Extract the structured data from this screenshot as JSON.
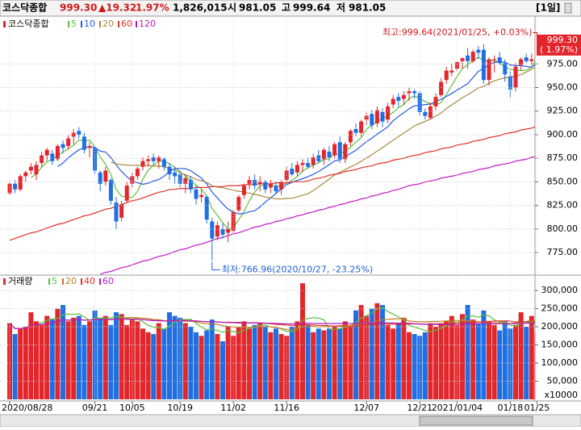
{
  "header": {
    "name": "코스닥종합",
    "price": "999.30",
    "change": "▲19.32",
    "percent": "1.97%",
    "volume": "1,826,015",
    "open_label": "시",
    "open": "981.05",
    "high_label": "고",
    "high": "999.64",
    "low_label": "저",
    "low": "981.05",
    "period": "[1일]"
  },
  "chart_data": [
    {
      "type": "candlestick",
      "title": "코스닥종합",
      "categories": [
        "2020/08/28",
        null,
        null,
        null,
        null,
        null,
        null,
        null,
        null,
        null,
        null,
        null,
        null,
        null,
        null,
        null,
        "09/21",
        null,
        null,
        null,
        null,
        null,
        null,
        "10/05",
        null,
        null,
        null,
        null,
        null,
        null,
        null,
        null,
        "10/19",
        null,
        null,
        null,
        null,
        null,
        null,
        null,
        null,
        null,
        "11/02",
        null,
        null,
        null,
        null,
        null,
        null,
        null,
        null,
        null,
        "11/16",
        null,
        null,
        null,
        null,
        null,
        null,
        null,
        null,
        null,
        null,
        null,
        null,
        null,
        null,
        "12/07",
        null,
        null,
        null,
        null,
        null,
        null,
        null,
        null,
        null,
        "12/21",
        null,
        null,
        null,
        null,
        null,
        null,
        "2021/01/04",
        null,
        null,
        null,
        null,
        null,
        null,
        null,
        null,
        null,
        "01/18",
        null,
        null,
        null,
        null,
        "01/25"
      ],
      "open": [
        838,
        848,
        842,
        856,
        862,
        858,
        870,
        878,
        880,
        874,
        890,
        888,
        898,
        904,
        898,
        886,
        886,
        860,
        850,
        852,
        828,
        812,
        830,
        848,
        856,
        866,
        872,
        876,
        872,
        874,
        866,
        860,
        858,
        848,
        852,
        842,
        834,
        834,
        808,
        792,
        800,
        796,
        798,
        820,
        836,
        848,
        852,
        848,
        850,
        844,
        846,
        842,
        852,
        864,
        860,
        868,
        870,
        868,
        878,
        874,
        882,
        878,
        892,
        874,
        892,
        906,
        902,
        916,
        922,
        912,
        924,
        916,
        932,
        940,
        938,
        944,
        946,
        944,
        924,
        918,
        930,
        942,
        958,
        966,
        970,
        978,
        984,
        978,
        990,
        990,
        958,
        980,
        982,
        976,
        962,
        950,
        974,
        982,
        978,
        981.05
      ],
      "high": [
        850,
        852,
        858,
        862,
        870,
        872,
        882,
        886,
        884,
        890,
        894,
        900,
        906,
        908,
        902,
        892,
        888,
        862,
        866,
        854,
        834,
        830,
        850,
        860,
        866,
        876,
        878,
        880,
        878,
        876,
        870,
        866,
        862,
        858,
        856,
        846,
        842,
        836,
        812,
        808,
        806,
        808,
        820,
        836,
        848,
        856,
        858,
        856,
        852,
        852,
        850,
        852,
        866,
        870,
        872,
        874,
        876,
        880,
        884,
        886,
        888,
        892,
        898,
        892,
        906,
        912,
        916,
        924,
        926,
        930,
        928,
        934,
        942,
        944,
        946,
        950,
        948,
        946,
        928,
        934,
        944,
        960,
        972,
        975,
        978,
        982,
        992,
        990,
        994,
        996,
        982,
        984,
        988,
        980,
        968,
        976,
        982,
        986,
        986,
        999.64
      ],
      "low": [
        836,
        838,
        840,
        850,
        858,
        852,
        866,
        872,
        868,
        872,
        880,
        884,
        890,
        896,
        880,
        876,
        858,
        840,
        846,
        826,
        800,
        808,
        828,
        844,
        852,
        862,
        866,
        868,
        864,
        862,
        852,
        848,
        844,
        838,
        838,
        826,
        828,
        806,
        766.96,
        788,
        790,
        786,
        796,
        818,
        832,
        842,
        842,
        840,
        838,
        838,
        838,
        836,
        848,
        856,
        856,
        860,
        864,
        864,
        870,
        868,
        872,
        874,
        870,
        870,
        888,
        898,
        898,
        910,
        906,
        908,
        908,
        912,
        928,
        930,
        932,
        936,
        938,
        920,
        916,
        916,
        926,
        940,
        954,
        962,
        968,
        970,
        970,
        976,
        980,
        954,
        952,
        966,
        974,
        956,
        940,
        946,
        968,
        976,
        974,
        981.05
      ],
      "close": [
        848,
        842,
        856,
        860,
        866,
        868,
        878,
        884,
        872,
        888,
        886,
        896,
        902,
        900,
        884,
        888,
        862,
        848,
        862,
        830,
        808,
        826,
        846,
        856,
        864,
        872,
        874,
        872,
        876,
        866,
        858,
        856,
        848,
        854,
        842,
        832,
        836,
        810,
        790,
        804,
        794,
        800,
        818,
        834,
        846,
        852,
        846,
        850,
        842,
        848,
        840,
        850,
        862,
        858,
        868,
        870,
        866,
        876,
        872,
        884,
        876,
        890,
        874,
        890,
        904,
        902,
        914,
        920,
        910,
        926,
        914,
        930,
        938,
        936,
        942,
        946,
        944,
        924,
        920,
        930,
        940,
        956,
        968,
        968,
        977,
        981,
        978,
        988,
        987,
        958,
        980,
        980,
        976,
        964,
        948,
        972,
        980,
        978,
        980,
        999.3
      ],
      "up_color": "#e3262b",
      "down_color": "#1f6fe3",
      "ylim": [
        752,
        1024
      ],
      "yticks": [
        {
          "value": 775,
          "label": "775.00"
        },
        {
          "value": 800,
          "label": "800.00"
        },
        {
          "value": 825,
          "label": "825.00"
        },
        {
          "value": 850,
          "label": "850.00"
        },
        {
          "value": 875,
          "label": "875.00"
        },
        {
          "value": 900,
          "label": "900.00"
        },
        {
          "value": 925,
          "label": "925.00"
        },
        {
          "value": 950,
          "label": "950.00"
        },
        {
          "value": 975,
          "label": "975.00"
        }
      ],
      "grid": true,
      "moving_averages": [
        {
          "name": "5",
          "color": "#5cbf3a",
          "window": 5
        },
        {
          "name": "10",
          "color": "#2458e8",
          "window": 10
        },
        {
          "name": "20",
          "color": "#a68a3e",
          "window": 20
        },
        {
          "name": "60",
          "color": "#e0302a",
          "values": [
            788,
            790,
            792,
            794,
            796,
            797,
            799,
            801,
            803,
            805,
            806,
            808,
            810,
            812,
            814,
            815,
            817,
            819,
            821,
            822,
            824,
            826,
            828,
            830,
            831,
            833,
            835,
            837,
            839,
            840,
            842,
            842,
            843,
            843,
            843,
            844,
            844,
            844,
            845,
            845,
            845,
            846,
            846,
            846,
            847,
            847,
            847,
            848,
            848,
            848,
            849,
            849,
            849,
            850,
            850,
            850,
            851,
            853,
            854,
            855,
            857,
            858,
            859,
            861,
            862,
            863,
            865,
            866,
            867,
            869,
            870,
            871,
            873,
            874,
            875,
            877,
            878,
            879,
            881,
            882,
            883,
            885,
            886,
            887,
            889,
            890,
            891,
            893,
            894,
            895,
            897,
            898,
            899,
            901,
            902,
            903,
            905,
            906,
            907,
            909
          ]
        },
        {
          "name": "120",
          "color": "#c318c8",
          "values": [
            null,
            null,
            null,
            null,
            null,
            null,
            null,
            null,
            null,
            null,
            null,
            null,
            null,
            null,
            null,
            null,
            null,
            752,
            754,
            755,
            757,
            759,
            760,
            762,
            764,
            766,
            767,
            769,
            771,
            772,
            774,
            776,
            778,
            779,
            781,
            783,
            784,
            786,
            788,
            790,
            791,
            793,
            795,
            796,
            798,
            800,
            802,
            803,
            805,
            806,
            808,
            809,
            811,
            812,
            814,
            815,
            817,
            818,
            820,
            821,
            823,
            824,
            826,
            827,
            829,
            830,
            832,
            833,
            835,
            836,
            838,
            839,
            841,
            842,
            844,
            846,
            847,
            848,
            850,
            851,
            852,
            854,
            855,
            856,
            857,
            859,
            860,
            861,
            863,
            864,
            865,
            867,
            868,
            869,
            870,
            872,
            873,
            874,
            876,
            877
          ]
        }
      ],
      "high_annotation": "최고:999.64(2021/01/25, +0.03%)",
      "low_annotation": "최저:766.96(2020/10/27, -23.25%)",
      "last_price_label": "999.30",
      "last_change_label": "( 1.97%)"
    },
    {
      "type": "volume",
      "title": "거래량",
      "values": [
        210000,
        180000,
        195000,
        200000,
        240000,
        215000,
        205000,
        230000,
        220000,
        250000,
        260000,
        215000,
        225000,
        230000,
        205000,
        215000,
        245000,
        225000,
        230000,
        205000,
        240000,
        235000,
        205000,
        220000,
        215000,
        195000,
        185000,
        180000,
        210000,
        195000,
        240000,
        230000,
        225000,
        210000,
        200000,
        185000,
        175000,
        190000,
        220000,
        180000,
        160000,
        200000,
        175000,
        200000,
        215000,
        195000,
        205000,
        210000,
        200000,
        185000,
        195000,
        180000,
        175000,
        200000,
        215000,
        320000,
        205000,
        185000,
        195000,
        190000,
        195000,
        200000,
        195000,
        215000,
        205000,
        245000,
        260000,
        230000,
        250000,
        265000,
        260000,
        205000,
        195000,
        210000,
        225000,
        185000,
        180000,
        175000,
        185000,
        210000,
        200000,
        210000,
        215000,
        230000,
        205000,
        235000,
        260000,
        220000,
        210000,
        245000,
        215000,
        205000,
        190000,
        215000,
        195000,
        205000,
        240000,
        200000,
        230000,
        185000
      ],
      "ylim": [
        0,
        338000
      ],
      "yticks": [
        {
          "value": 50000,
          "label": "50,000"
        },
        {
          "value": 100000,
          "label": "100,000"
        },
        {
          "value": 150000,
          "label": "150,000"
        },
        {
          "value": 200000,
          "label": "200,000"
        },
        {
          "value": 250000,
          "label": "250,000"
        },
        {
          "value": 300000,
          "label": "300,000"
        }
      ],
      "grid": true,
      "unit_label": "x10000",
      "moving_averages": [
        {
          "name": "5",
          "color": "#5cbf3a",
          "window": 5
        },
        {
          "name": "20",
          "color": "#c07a20",
          "window": 20
        },
        {
          "name": "40",
          "color": "#e0302a",
          "window": 40
        },
        {
          "name": "60",
          "color": "#b020c0",
          "window": 60
        }
      ]
    }
  ]
}
